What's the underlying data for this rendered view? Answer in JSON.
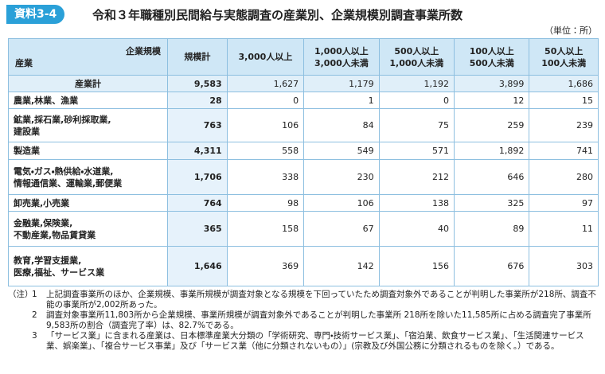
{
  "header": {
    "badge": "資料3-4",
    "title": "令和３年職種別民間給与実態調査の産業別、企業規模別調査事業所数",
    "unit": "（単位：所）"
  },
  "table": {
    "corner_top": "企業規模",
    "corner_bottom": "産業",
    "columns": [
      [
        "規模計"
      ],
      [
        "3,000人以上"
      ],
      [
        "1,000人以上",
        "3,000人未満"
      ],
      [
        "500人以上",
        "1,000人未満"
      ],
      [
        "100人以上",
        "500人未満"
      ],
      [
        "50人以上",
        "100人未満"
      ]
    ],
    "rows": [
      {
        "label": [
          "産業計"
        ],
        "values": [
          "9,583",
          "1,627",
          "1,179",
          "1,192",
          "3,899",
          "1,686"
        ]
      },
      {
        "label": [
          "農業,林業、漁業"
        ],
        "values": [
          "28",
          "0",
          "1",
          "0",
          "12",
          "15"
        ]
      },
      {
        "label": [
          "鉱業,採石業,砂利採取業,",
          "建設業"
        ],
        "values": [
          "763",
          "106",
          "84",
          "75",
          "259",
          "239"
        ]
      },
      {
        "label": [
          "製造業"
        ],
        "values": [
          "4,311",
          "558",
          "549",
          "571",
          "1,892",
          "741"
        ]
      },
      {
        "label": [
          "電気・ガス・熱供給・水道業,",
          "情報通信業、運輸業,郵便業"
        ],
        "values": [
          "1,706",
          "338",
          "230",
          "212",
          "646",
          "280"
        ]
      },
      {
        "label": [
          "卸売業,小売業"
        ],
        "values": [
          "764",
          "98",
          "106",
          "138",
          "325",
          "97"
        ]
      },
      {
        "label": [
          "金融業,保険業,",
          "不動産業,物品賃貸業"
        ],
        "values": [
          "365",
          "158",
          "67",
          "40",
          "89",
          "11"
        ]
      },
      {
        "label": [
          "教育,学習支援業,",
          "医療,福祉、サービス業"
        ],
        "values": [
          "1,646",
          "369",
          "142",
          "156",
          "676",
          "303"
        ]
      }
    ]
  },
  "notes": {
    "marker": "（注）",
    "items": [
      {
        "number": "1",
        "text": "上記調査事業所のほか、企業規模、事業所規模が調査対象となる規模を下回っていたため調査対象外であることが判明した事業所が218所、調査不能の事業所が2,002所あった。"
      },
      {
        "number": "2",
        "text": "調査対象事業所11,803所から企業規模、事業所規模が調査対象外であることが判明した事業所 218所を除いた11,585所に占める調査完了事業所9,583所の割合（調査完了率）は、82.7%である。"
      },
      {
        "number": "3",
        "text": "「サービス業」に含まれる産業は、日本標準産業大分類の「学術研究、専門・技術サービス業」、「宿泊業、飲食サービス業」、「生活関連サービス業、娯楽業」、「複合サービス事業」及び「サービス業（他に分類されないもの）」(宗教及び外国公務に分類されるものを除く。）である。"
      }
    ]
  }
}
